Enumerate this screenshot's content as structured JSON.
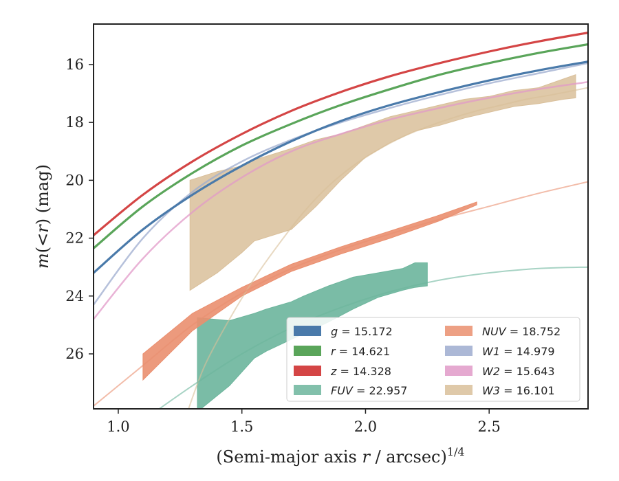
{
  "chart_data": {
    "type": "area",
    "xlabel": "(Semi-major axis r / arcsec)^1/4",
    "ylabel": "m(<r) (mag)",
    "xlim": [
      0.9,
      2.9
    ],
    "ylim": [
      27.9,
      14.6
    ],
    "y_inverted": true,
    "grid": false,
    "legend_placement": "lower-right",
    "xticks": [
      1.0,
      1.5,
      2.0,
      2.5
    ],
    "xtick_labels": [
      "1.0",
      "1.5",
      "2.0",
      "2.5"
    ],
    "yticks": [
      16,
      18,
      20,
      22,
      24,
      26
    ],
    "ytick_labels": [
      "16",
      "18",
      "20",
      "22",
      "24",
      "26"
    ],
    "series": [
      {
        "key": "W3",
        "label_prefix": "W3",
        "label_value": "16.101",
        "color": "#d9bf9a",
        "band_x": [
          1.29,
          1.4,
          1.5,
          1.55,
          1.7,
          1.8,
          1.9,
          2.0,
          2.1,
          2.2,
          2.3,
          2.4,
          2.5,
          2.6,
          2.7,
          2.8,
          2.85
        ],
        "band_upper": [
          20.0,
          19.7,
          19.5,
          19.3,
          18.9,
          18.6,
          18.4,
          18.1,
          17.8,
          17.6,
          17.4,
          17.2,
          17.1,
          16.9,
          16.8,
          16.5,
          16.35
        ],
        "band_lower": [
          23.8,
          23.2,
          22.5,
          22.1,
          21.7,
          20.9,
          20.0,
          19.2,
          18.7,
          18.3,
          18.1,
          17.85,
          17.65,
          17.45,
          17.35,
          17.2,
          17.15
        ],
        "line_x": [
          1.28,
          1.35,
          1.45,
          1.55,
          1.65,
          1.75,
          1.85,
          1.95,
          2.05,
          2.15,
          2.25,
          2.35,
          2.45,
          2.55,
          2.65,
          2.75,
          2.9
        ],
        "line_y": [
          28.0,
          26.4,
          24.8,
          23.4,
          22.2,
          21.1,
          20.2,
          19.5,
          18.95,
          18.5,
          18.15,
          17.85,
          17.6,
          17.4,
          17.2,
          17.05,
          16.8
        ]
      },
      {
        "key": "FUV",
        "label_prefix": "FUV",
        "label_value": "22.957",
        "color": "#6cb59c",
        "band_x": [
          1.32,
          1.45,
          1.55,
          1.6,
          1.7,
          1.75,
          1.85,
          1.95,
          2.05,
          2.15,
          2.2,
          2.25
        ],
        "band_upper": [
          24.75,
          24.85,
          24.6,
          24.45,
          24.2,
          24.0,
          23.65,
          23.35,
          23.2,
          23.05,
          22.85,
          22.85
        ],
        "band_lower": [
          28.0,
          27.1,
          26.15,
          25.9,
          25.5,
          25.3,
          24.9,
          24.45,
          24.05,
          23.8,
          23.7,
          23.65
        ],
        "line_x": [
          1.1,
          1.3,
          1.5,
          1.7,
          1.9,
          2.1,
          2.3,
          2.5,
          2.7,
          2.9
        ],
        "line_y": [
          28.3,
          27.1,
          26.0,
          25.1,
          24.4,
          23.85,
          23.45,
          23.2,
          23.05,
          23.0
        ]
      },
      {
        "key": "NUV",
        "label_prefix": "NUV",
        "label_value": "18.752",
        "color": "#ea8f6f",
        "band_x": [
          1.1,
          1.3,
          1.5,
          1.7,
          1.9,
          2.1,
          2.3,
          2.45
        ],
        "band_upper": [
          26.0,
          24.6,
          23.7,
          22.9,
          22.3,
          21.75,
          21.2,
          20.75
        ],
        "band_lower": [
          26.9,
          25.2,
          24.0,
          23.15,
          22.55,
          22.0,
          21.4,
          20.85
        ],
        "line_x": [
          0.9,
          1.1,
          1.3,
          1.5,
          1.7,
          1.9,
          2.1,
          2.3,
          2.5,
          2.7,
          2.9
        ],
        "line_y": [
          27.8,
          26.4,
          25.0,
          23.9,
          23.05,
          22.4,
          21.85,
          21.35,
          20.9,
          20.45,
          20.05
        ]
      },
      {
        "key": "W2",
        "label_prefix": "W2",
        "label_value": "15.643",
        "color": "#e19ac8",
        "line_x": [
          0.9,
          1.1,
          1.3,
          1.5,
          1.7,
          1.9,
          2.1,
          2.3,
          2.5,
          2.7,
          2.9
        ],
        "line_y": [
          24.8,
          22.7,
          21.1,
          19.9,
          19.0,
          18.4,
          17.9,
          17.5,
          17.15,
          16.85,
          16.6
        ]
      },
      {
        "key": "W1",
        "label_prefix": "W1",
        "label_value": "14.979",
        "color": "#9eaccf",
        "line_x": [
          0.9,
          1.1,
          1.3,
          1.5,
          1.7,
          1.9,
          2.1,
          2.3,
          2.5,
          2.7,
          2.9
        ],
        "line_y": [
          24.3,
          22.0,
          20.4,
          19.35,
          18.6,
          18.0,
          17.5,
          17.05,
          16.65,
          16.3,
          15.95
        ]
      },
      {
        "key": "g",
        "label_prefix": "g",
        "label_value": "15.172",
        "color": "#4a7aaa",
        "line_x": [
          0.9,
          1.1,
          1.3,
          1.5,
          1.7,
          1.9,
          2.1,
          2.3,
          2.5,
          2.7,
          2.9
        ],
        "line_y": [
          23.2,
          21.7,
          20.5,
          19.5,
          18.65,
          17.95,
          17.4,
          16.95,
          16.55,
          16.2,
          15.9
        ]
      },
      {
        "key": "r",
        "label_prefix": "r",
        "label_value": "14.621",
        "color": "#5aa55a",
        "line_x": [
          0.9,
          1.1,
          1.3,
          1.5,
          1.7,
          1.9,
          2.1,
          2.3,
          2.5,
          2.7,
          2.9
        ],
        "line_y": [
          22.35,
          20.9,
          19.75,
          18.8,
          18.05,
          17.4,
          16.85,
          16.35,
          15.95,
          15.6,
          15.3
        ]
      },
      {
        "key": "z",
        "label_prefix": "z",
        "label_value": "14.328",
        "color": "#d44545",
        "line_x": [
          0.9,
          1.1,
          1.3,
          1.5,
          1.7,
          1.9,
          2.1,
          2.3,
          2.5,
          2.7,
          2.9
        ],
        "line_y": [
          21.9,
          20.5,
          19.35,
          18.4,
          17.6,
          16.95,
          16.4,
          15.95,
          15.55,
          15.2,
          14.9
        ]
      }
    ],
    "legend_order": [
      "g",
      "r",
      "z",
      "FUV",
      "NUV",
      "W1",
      "W2",
      "W3"
    ]
  }
}
